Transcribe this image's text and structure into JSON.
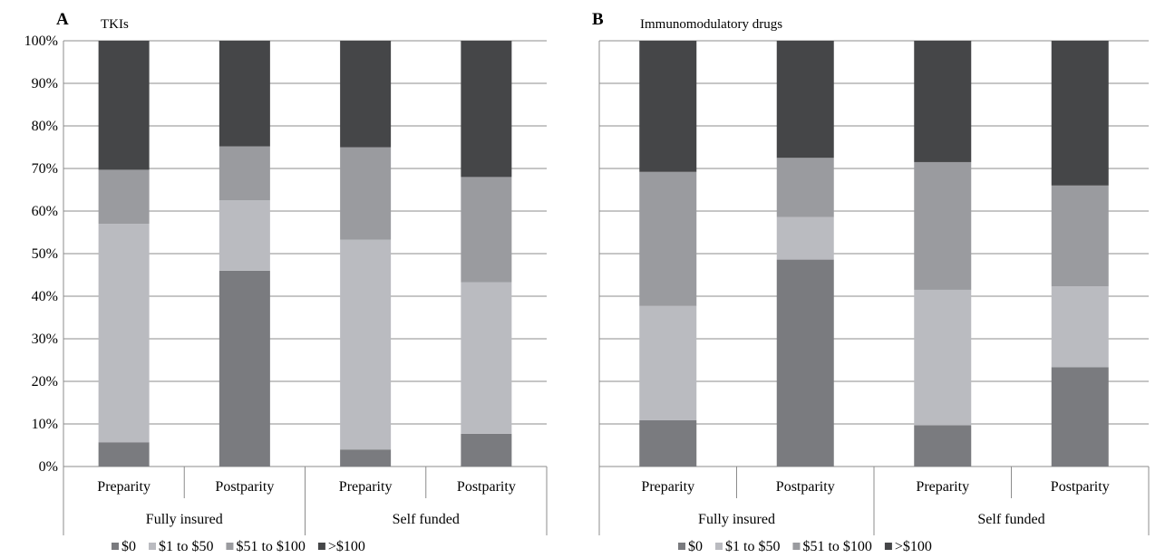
{
  "chart_data": [
    {
      "type": "bar",
      "stacked": true,
      "panel": "A",
      "title": "TKIs",
      "categories": [
        "Preparity",
        "Postparity",
        "Preparity",
        "Postparity"
      ],
      "groups": [
        {
          "label": "Fully insured",
          "span": [
            0,
            1
          ]
        },
        {
          "label": "Self funded",
          "span": [
            2,
            3
          ]
        }
      ],
      "series": [
        {
          "name": "$0",
          "color": "#7a7b7f",
          "values": [
            5.7,
            46.0,
            4.0,
            7.7
          ]
        },
        {
          "name": "$1 to $50",
          "color": "#babbc0",
          "values": [
            51.3,
            16.5,
            49.3,
            35.6
          ]
        },
        {
          "name": "$51 to $100",
          "color": "#9a9b9f",
          "values": [
            12.7,
            12.7,
            21.7,
            24.7
          ]
        },
        {
          "name": ">$100",
          "color": "#454648",
          "values": [
            30.3,
            24.8,
            25.0,
            32.0
          ]
        }
      ],
      "ylim": [
        0,
        100
      ],
      "yticks": [
        "0%",
        "10%",
        "20%",
        "30%",
        "40%",
        "50%",
        "60%",
        "70%",
        "80%",
        "90%",
        "100%"
      ],
      "grid": true,
      "legend": "bottom"
    },
    {
      "type": "bar",
      "stacked": true,
      "panel": "B",
      "title": "Immunomodulatory drugs",
      "categories": [
        "Preparity",
        "Postparity",
        "Preparity",
        "Postparity"
      ],
      "groups": [
        {
          "label": "Fully insured",
          "span": [
            0,
            1
          ]
        },
        {
          "label": "Self funded",
          "span": [
            2,
            3
          ]
        }
      ],
      "series": [
        {
          "name": "$0",
          "color": "#7a7b7f",
          "values": [
            10.9,
            48.6,
            9.7,
            23.3
          ]
        },
        {
          "name": "$1 to $50",
          "color": "#babbc0",
          "values": [
            26.8,
            10.0,
            31.8,
            19.0
          ]
        },
        {
          "name": "$51 to $100",
          "color": "#9a9b9f",
          "values": [
            31.5,
            13.9,
            30.0,
            23.7
          ]
        },
        {
          "name": ">$100",
          "color": "#454648",
          "values": [
            30.8,
            27.5,
            28.5,
            34.0
          ]
        }
      ],
      "ylim": [
        0,
        100
      ],
      "yticks": [],
      "grid": true,
      "legend": "bottom"
    }
  ]
}
